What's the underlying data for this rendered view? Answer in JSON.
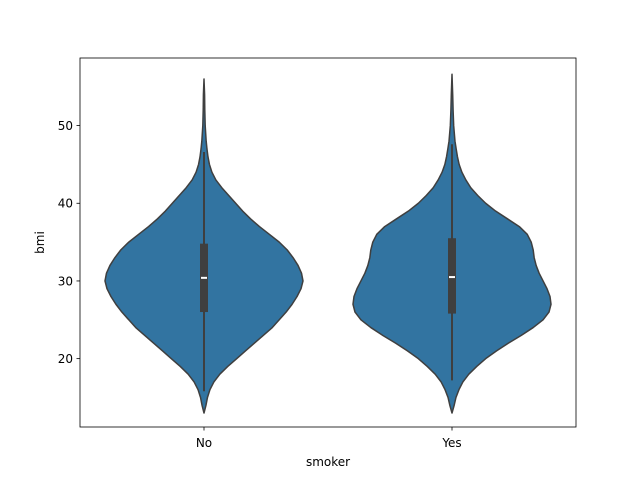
{
  "chart_data": {
    "type": "violin",
    "title": "",
    "xlabel": "smoker",
    "ylabel": "bmi",
    "categories": [
      "No",
      "Yes"
    ],
    "ylim": [
      11.2,
      58.7
    ],
    "yticks": [
      20,
      30,
      40,
      50
    ],
    "grid": false,
    "legend": "none",
    "colors": {
      "violin_fill": "#3274a1",
      "violin_edge": "#3f3f3f",
      "box": "#3f3f3f",
      "median": "#ffffff",
      "axes": "#000000"
    },
    "violins": [
      {
        "category": "No",
        "summary": {
          "min": 15.8,
          "q1": 26.0,
          "median": 30.4,
          "q3": 34.8,
          "max": 46.6,
          "kde_min": 13.0,
          "kde_max": 56.0
        },
        "density": [
          {
            "y": 13.0,
            "w": 0.0
          },
          {
            "y": 14.0,
            "w": 0.02
          },
          {
            "y": 15.0,
            "w": 0.035
          },
          {
            "y": 16.0,
            "w": 0.06
          },
          {
            "y": 17.0,
            "w": 0.1
          },
          {
            "y": 18.0,
            "w": 0.16
          },
          {
            "y": 19.0,
            "w": 0.24
          },
          {
            "y": 20.0,
            "w": 0.33
          },
          {
            "y": 21.0,
            "w": 0.42
          },
          {
            "y": 22.0,
            "w": 0.51
          },
          {
            "y": 23.0,
            "w": 0.6
          },
          {
            "y": 24.0,
            "w": 0.69
          },
          {
            "y": 25.0,
            "w": 0.76
          },
          {
            "y": 26.0,
            "w": 0.83
          },
          {
            "y": 27.0,
            "w": 0.89
          },
          {
            "y": 28.0,
            "w": 0.94
          },
          {
            "y": 29.0,
            "w": 0.98
          },
          {
            "y": 30.0,
            "w": 1.0
          },
          {
            "y": 31.0,
            "w": 0.985
          },
          {
            "y": 32.0,
            "w": 0.95
          },
          {
            "y": 33.0,
            "w": 0.9
          },
          {
            "y": 34.0,
            "w": 0.84
          },
          {
            "y": 35.0,
            "w": 0.76
          },
          {
            "y": 36.0,
            "w": 0.66
          },
          {
            "y": 37.0,
            "w": 0.56
          },
          {
            "y": 38.0,
            "w": 0.47
          },
          {
            "y": 39.0,
            "w": 0.39
          },
          {
            "y": 40.0,
            "w": 0.32
          },
          {
            "y": 41.0,
            "w": 0.25
          },
          {
            "y": 42.0,
            "w": 0.18
          },
          {
            "y": 43.0,
            "w": 0.12
          },
          {
            "y": 44.0,
            "w": 0.08
          },
          {
            "y": 45.0,
            "w": 0.055
          },
          {
            "y": 46.0,
            "w": 0.04
          },
          {
            "y": 47.0,
            "w": 0.03
          },
          {
            "y": 48.0,
            "w": 0.022
          },
          {
            "y": 50.0,
            "w": 0.012
          },
          {
            "y": 52.0,
            "w": 0.008
          },
          {
            "y": 54.0,
            "w": 0.006
          },
          {
            "y": 56.0,
            "w": 0.0
          }
        ]
      },
      {
        "category": "Yes",
        "summary": {
          "min": 17.2,
          "q1": 25.8,
          "median": 30.5,
          "q3": 35.5,
          "max": 47.6,
          "kde_min": 13.0,
          "kde_max": 56.6
        },
        "density": [
          {
            "y": 13.0,
            "w": 0.0
          },
          {
            "y": 14.0,
            "w": 0.022
          },
          {
            "y": 15.0,
            "w": 0.04
          },
          {
            "y": 16.0,
            "w": 0.07
          },
          {
            "y": 17.0,
            "w": 0.11
          },
          {
            "y": 18.0,
            "w": 0.17
          },
          {
            "y": 19.0,
            "w": 0.25
          },
          {
            "y": 20.0,
            "w": 0.34
          },
          {
            "y": 21.0,
            "w": 0.45
          },
          {
            "y": 22.0,
            "w": 0.57
          },
          {
            "y": 23.0,
            "w": 0.7
          },
          {
            "y": 24.0,
            "w": 0.82
          },
          {
            "y": 25.0,
            "w": 0.92
          },
          {
            "y": 26.0,
            "w": 0.98
          },
          {
            "y": 27.0,
            "w": 1.0
          },
          {
            "y": 28.0,
            "w": 0.99
          },
          {
            "y": 29.0,
            "w": 0.96
          },
          {
            "y": 30.0,
            "w": 0.92
          },
          {
            "y": 31.0,
            "w": 0.88
          },
          {
            "y": 32.0,
            "w": 0.85
          },
          {
            "y": 33.0,
            "w": 0.83
          },
          {
            "y": 34.0,
            "w": 0.82
          },
          {
            "y": 35.0,
            "w": 0.8
          },
          {
            "y": 36.0,
            "w": 0.76
          },
          {
            "y": 37.0,
            "w": 0.68
          },
          {
            "y": 38.0,
            "w": 0.56
          },
          {
            "y": 39.0,
            "w": 0.44
          },
          {
            "y": 40.0,
            "w": 0.34
          },
          {
            "y": 41.0,
            "w": 0.26
          },
          {
            "y": 42.0,
            "w": 0.19
          },
          {
            "y": 43.0,
            "w": 0.14
          },
          {
            "y": 44.0,
            "w": 0.1
          },
          {
            "y": 45.0,
            "w": 0.072
          },
          {
            "y": 46.0,
            "w": 0.055
          },
          {
            "y": 47.0,
            "w": 0.042
          },
          {
            "y": 48.0,
            "w": 0.03
          },
          {
            "y": 50.0,
            "w": 0.017
          },
          {
            "y": 52.0,
            "w": 0.011
          },
          {
            "y": 54.0,
            "w": 0.007
          },
          {
            "y": 56.6,
            "w": 0.0
          }
        ]
      }
    ]
  }
}
